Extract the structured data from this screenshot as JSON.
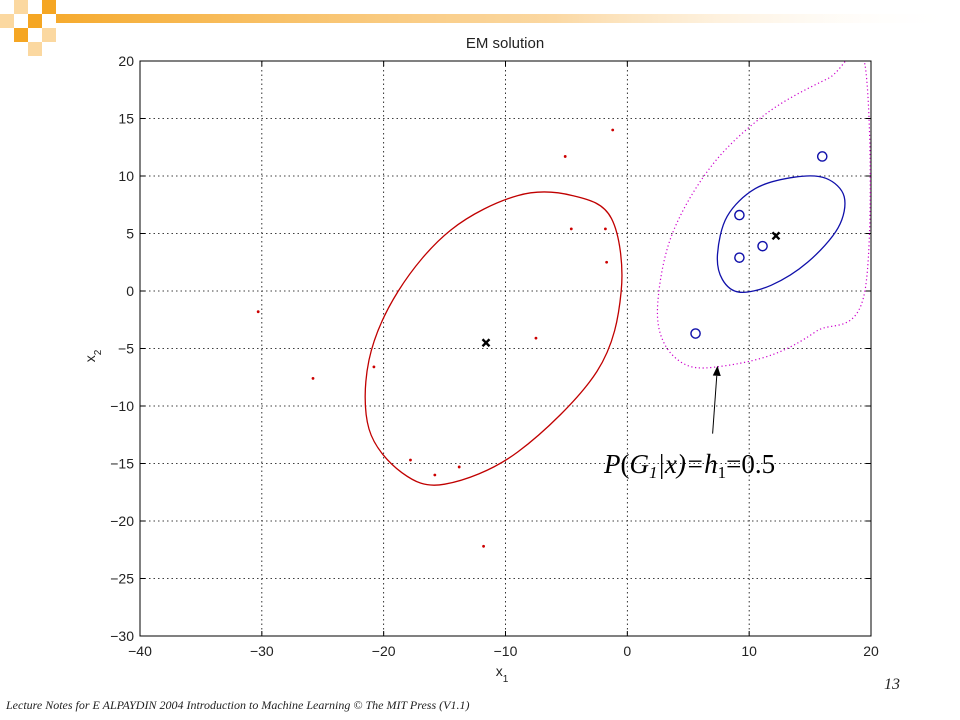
{
  "slide": {
    "footer": "Lecture Notes for E ALPAYDIN 2004 Introduction to Machine Learning © The MIT Press (V1.1)",
    "page_number": "13",
    "accent_color": "#f5a623"
  },
  "chart_data": {
    "type": "scatter",
    "title": "EM solution",
    "xlabel": "x",
    "xlabel_sub": "1",
    "ylabel": "x",
    "ylabel_sub": "2",
    "xlim": [
      -40,
      20
    ],
    "ylim": [
      -30,
      20
    ],
    "xticks": [
      -40,
      -30,
      -20,
      -10,
      0,
      10,
      20
    ],
    "yticks": [
      20,
      15,
      10,
      5,
      0,
      -5,
      -10,
      -15,
      -20,
      -25,
      -30
    ],
    "xtick_labels": [
      "−40",
      "−30",
      "−20",
      "−10",
      "0",
      "10",
      "20"
    ],
    "ytick_labels": [
      "20",
      "15",
      "10",
      "5",
      "0",
      "−5",
      "−10",
      "−15",
      "−20",
      "−25",
      "−30"
    ],
    "grid": true,
    "series": [
      {
        "marker": "dot",
        "color": "#cc0000",
        "points": [
          [
            -30.3,
            -1.8
          ],
          [
            -25.8,
            -7.6
          ],
          [
            -20.8,
            -6.6
          ],
          [
            -17.8,
            -14.7
          ],
          [
            -15.8,
            -16
          ],
          [
            -13.8,
            -15.3
          ],
          [
            -11.8,
            -22.2
          ],
          [
            -7.5,
            -4.1
          ],
          [
            -5.1,
            11.7
          ],
          [
            -4.6,
            5.4
          ],
          [
            -1.8,
            5.4
          ],
          [
            -1.7,
            2.5
          ],
          [
            -1.2,
            14
          ]
        ]
      },
      {
        "marker": "circle",
        "color": "#1010aa",
        "points": [
          [
            5.6,
            -3.7
          ],
          [
            9.2,
            6.6
          ],
          [
            9.2,
            2.9
          ],
          [
            11.1,
            3.9
          ],
          [
            16,
            11.7
          ]
        ]
      },
      {
        "marker": "cross",
        "color": "#000000",
        "points": [
          [
            -11.6,
            -4.5
          ],
          [
            12.2,
            4.8
          ]
        ]
      }
    ],
    "ellipses": [
      {
        "color": "#c00000",
        "style": "solid",
        "center": [
          -11.6,
          -4.5
        ],
        "boundary": [
          [
            -4.5,
            8.3
          ],
          [
            -1.3,
            6.3
          ],
          [
            -0.5,
            0
          ],
          [
            -2.5,
            -7
          ],
          [
            -9,
            -14
          ],
          [
            -15,
            -16.8
          ],
          [
            -18.5,
            -15.8
          ],
          [
            -21.2,
            -12
          ],
          [
            -21.2,
            -6
          ],
          [
            -18.8,
            0
          ],
          [
            -14.5,
            5.3
          ],
          [
            -9,
            8.3
          ]
        ]
      },
      {
        "color": "#1010aa",
        "style": "solid",
        "center": [
          12.2,
          4.8
        ],
        "boundary": [
          [
            7.4,
            3.2
          ],
          [
            8.2,
            6.5
          ],
          [
            10.5,
            8.9
          ],
          [
            13.7,
            9.9
          ],
          [
            16.3,
            9.8
          ],
          [
            17.8,
            8.2
          ],
          [
            17.3,
            5.5
          ],
          [
            14.8,
            2.5
          ],
          [
            11.8,
            0.5
          ],
          [
            9.2,
            -0.1
          ],
          [
            7.8,
            1
          ]
        ]
      },
      {
        "color": "#cc00cc",
        "style": "dotted",
        "center": [
          12.2,
          4.8
        ],
        "boundary": [
          [
            19.5,
            19.7
          ],
          [
            16.5,
            18.5
          ],
          [
            11.5,
            15.5
          ],
          [
            7,
            11
          ],
          [
            3.7,
            5
          ],
          [
            2.5,
            -1
          ],
          [
            3,
            -4.5
          ],
          [
            5,
            -6.5
          ],
          [
            8,
            -6.5
          ],
          [
            12,
            -5.5
          ],
          [
            15.5,
            -3.5
          ],
          [
            19.5,
            0
          ]
        ]
      }
    ],
    "annotation": {
      "text": "P(G1|x)=h1=0.5",
      "p": "P",
      "g": "G",
      "g_sub": "1",
      "mid": "|x)=h",
      "h_sub": "1",
      "rest": "=0.5",
      "arrow_from": [
        7,
        -12.4
      ],
      "arrow_to": [
        7.4,
        -6.5
      ]
    }
  }
}
